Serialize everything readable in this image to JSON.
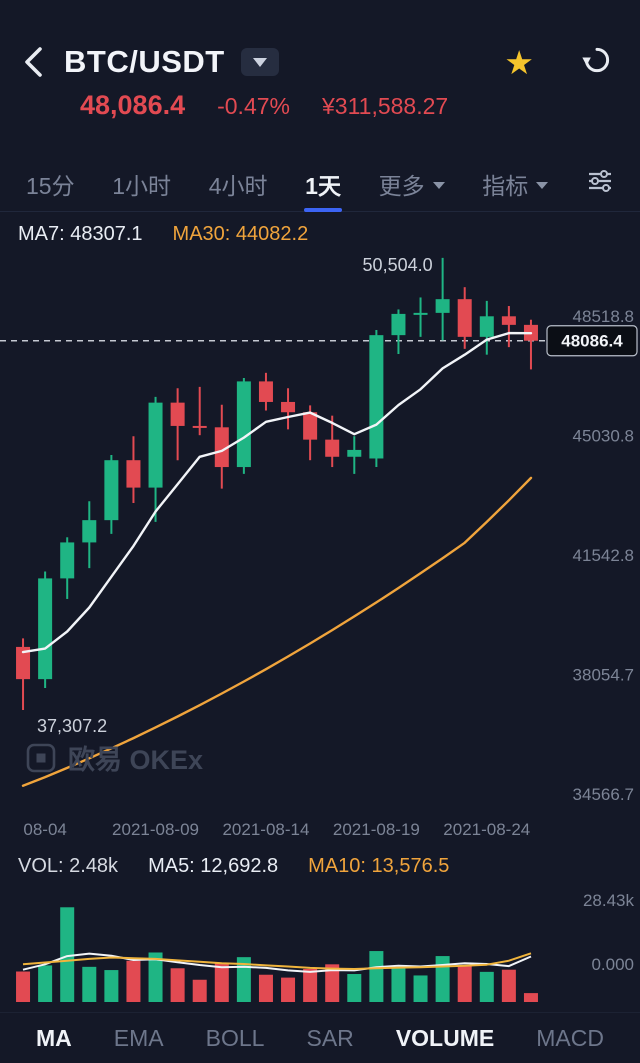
{
  "header": {
    "symbol": "BTC/USDT",
    "price": "48,086.4",
    "change_pct": "-0.47%",
    "price_cny": "¥311,588.27"
  },
  "timeframe_bar": {
    "items": [
      {
        "label": "15分"
      },
      {
        "label": "1小时"
      },
      {
        "label": "4小时"
      },
      {
        "label": "1天"
      },
      {
        "label": "更多"
      },
      {
        "label": "指标"
      }
    ],
    "active": "1天"
  },
  "overlay_legend": {
    "ma7": "MA7: 48307.1",
    "ma30": "MA30: 44082.2"
  },
  "volume_legend": {
    "vol": "VOL: 2.48k",
    "ma5": "MA5: 12,692.8",
    "ma10": "MA10: 13,576.5"
  },
  "watermark": "欧易 OKEx",
  "indicator_tabs": {
    "items": [
      {
        "label": "MA",
        "active": true
      },
      {
        "label": "EMA",
        "active": false
      },
      {
        "label": "BOLL",
        "active": false
      },
      {
        "label": "SAR",
        "active": false
      },
      {
        "label": "VOLUME",
        "active": true
      },
      {
        "label": "MACD",
        "active": false
      }
    ]
  },
  "colors": {
    "up": "#1fb584",
    "down": "#e24a52",
    "ma_fast": "#f2f4f8",
    "ma_slow": "#f0a43c",
    "accent": "#3c64f4",
    "star": "#f5c42c"
  },
  "chart_data": [
    {
      "type": "candlestick",
      "title": "BTC/USDT 1天",
      "interval": "1天",
      "x": [
        "2021-08-03",
        "2021-08-04",
        "2021-08-05",
        "2021-08-06",
        "2021-08-07",
        "2021-08-08",
        "2021-08-09",
        "2021-08-10",
        "2021-08-11",
        "2021-08-12",
        "2021-08-13",
        "2021-08-14",
        "2021-08-15",
        "2021-08-16",
        "2021-08-17",
        "2021-08-18",
        "2021-08-19",
        "2021-08-20",
        "2021-08-21",
        "2021-08-22",
        "2021-08-23",
        "2021-08-24",
        "2021-08-25",
        "2021-08-26"
      ],
      "ohlc": [
        [
          39150,
          39400,
          37307.2,
          38210
        ],
        [
          38210,
          41350,
          37950,
          41150
        ],
        [
          41150,
          42350,
          40550,
          42200
        ],
        [
          42200,
          43400,
          41450,
          42850
        ],
        [
          42850,
          44750,
          42450,
          44600
        ],
        [
          44600,
          45300,
          43350,
          43800
        ],
        [
          43800,
          46450,
          42800,
          46280
        ],
        [
          46280,
          46700,
          44600,
          45600
        ],
        [
          45600,
          46740,
          45330,
          45560
        ],
        [
          45560,
          46220,
          43770,
          44400
        ],
        [
          44400,
          47000,
          44200,
          46900
        ],
        [
          46900,
          47150,
          46050,
          46300
        ],
        [
          46300,
          46700,
          45500,
          46000
        ],
        [
          46000,
          46200,
          44600,
          45200
        ],
        [
          45200,
          45900,
          44400,
          44700
        ],
        [
          44700,
          45300,
          44200,
          44900
        ],
        [
          44650,
          48400,
          44400,
          48250
        ],
        [
          48250,
          49000,
          47700,
          48870
        ],
        [
          48870,
          49350,
          48200,
          48900
        ],
        [
          48900,
          50504,
          48100,
          49300
        ],
        [
          49300,
          49650,
          47850,
          48200
        ],
        [
          48200,
          49250,
          47680,
          48800
        ],
        [
          48800,
          49100,
          47900,
          48550
        ],
        [
          48550,
          48700,
          47250,
          48086.4
        ]
      ],
      "series": [
        {
          "name": "MA7",
          "color": "#f2f4f8",
          "values": [
            39000,
            39100,
            39600,
            40300,
            41200,
            42100,
            43100,
            43900,
            44700,
            44870,
            45260,
            45720,
            45860,
            45990,
            45690,
            45360,
            45640,
            46210,
            46670,
            47280,
            47680,
            48120,
            48310,
            48307.1
          ]
        },
        {
          "name": "MA30",
          "color": "#f0a43c",
          "values": [
            35100,
            35350,
            35620,
            35900,
            36190,
            36490,
            36800,
            37120,
            37450,
            37790,
            38140,
            38500,
            38870,
            39250,
            39640,
            40040,
            40450,
            40870,
            41300,
            41740,
            42190,
            42800,
            43430,
            44082.2
          ]
        }
      ],
      "ylim": [
        34215,
        50560
      ],
      "y_axis_ticks": [
        {
          "label": "48518.8",
          "value": 48518.8
        },
        {
          "label": "45030.8",
          "value": 45030.8
        },
        {
          "label": "41542.8",
          "value": 41542.8
        },
        {
          "label": "38054.7",
          "value": 38054.7
        },
        {
          "label": "34566.7",
          "value": 34566.7
        }
      ],
      "last_price": 48086.4,
      "last_price_label": "48086.4",
      "high_label": {
        "label": "50,504.0",
        "index": 19
      },
      "low_label": {
        "label": "37,307.2",
        "index": 0
      },
      "x_tick_labels": [
        {
          "index": 1,
          "label": "08-04"
        },
        {
          "index": 6,
          "label": "2021-08-09"
        },
        {
          "index": 11,
          "label": "2021-08-14"
        },
        {
          "index": 16,
          "label": "2021-08-19"
        },
        {
          "index": 21,
          "label": "2021-08-24"
        }
      ],
      "grid": false,
      "legend_position": "top-left"
    },
    {
      "type": "bar",
      "title": "VOLUME",
      "values": [
        8500,
        10200,
        26400,
        9800,
        8900,
        11500,
        13800,
        9400,
        6200,
        10800,
        12500,
        7600,
        6800,
        9200,
        10500,
        7800,
        14200,
        9600,
        7400,
        12800,
        10200,
        8400,
        9000,
        2480
      ],
      "series": [
        {
          "name": "MA5",
          "color": "#f2f4f8",
          "values": [
            9000,
            10500,
            12800,
            13500,
            12900,
            11700,
            11900,
            11100,
            10300,
            9700,
            9800,
            9500,
            8800,
            8400,
            8900,
            8800,
            9700,
            10100,
            9900,
            10300,
            10800,
            10600,
            10000,
            12692.8
          ]
        },
        {
          "name": "MA10",
          "color": "#f0b43c",
          "values": [
            10500,
            11000,
            11500,
            12000,
            12400,
            12200,
            12000,
            11600,
            11200,
            10800,
            10600,
            10200,
            9900,
            9500,
            9300,
            9200,
            9400,
            9600,
            9700,
            9900,
            10100,
            10400,
            11500,
            13576.5
          ]
        }
      ],
      "ylim": [
        0,
        28430
      ],
      "y_axis_ticks": [
        "28.43k",
        "0.000"
      ]
    }
  ]
}
